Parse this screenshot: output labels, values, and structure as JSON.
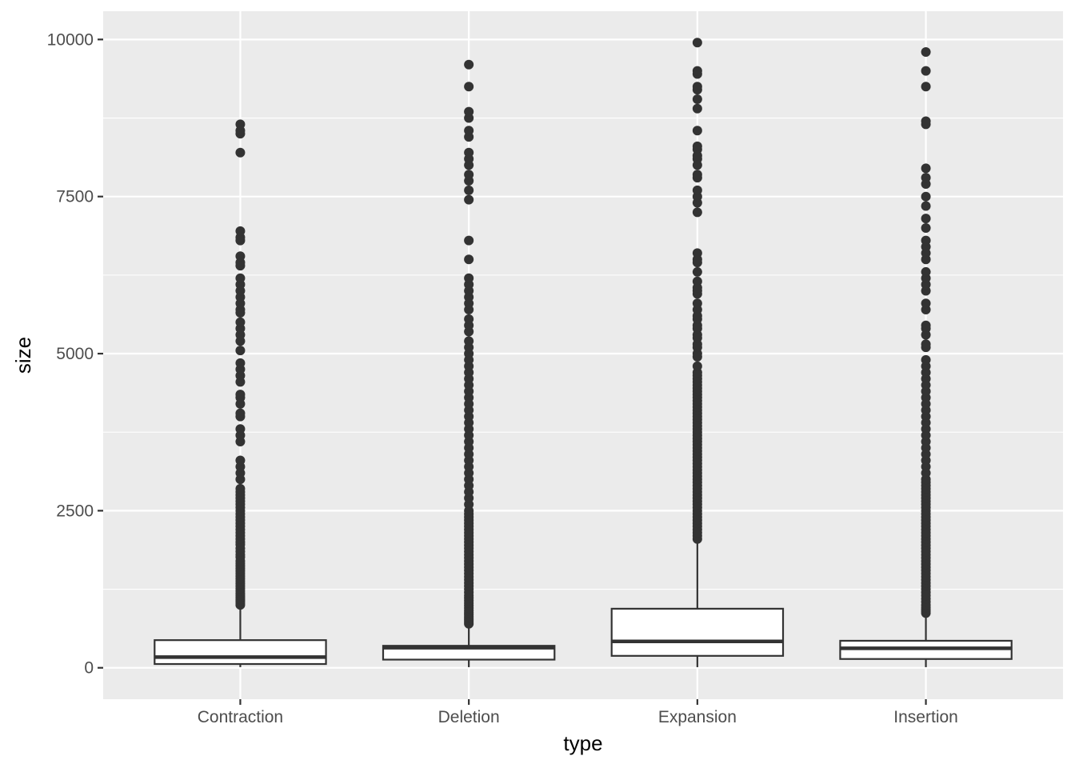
{
  "chart_data": {
    "type": "boxplot",
    "title": "",
    "xlabel": "type",
    "ylabel": "size",
    "categories": [
      "Contraction",
      "Deletion",
      "Expansion",
      "Insertion"
    ],
    "ylim": [
      -500,
      10450
    ],
    "yticks": [
      0,
      2500,
      5000,
      7500,
      10000
    ],
    "ytick_labels": [
      "0",
      "2500",
      "5000",
      "7500",
      "10000"
    ],
    "grid": true,
    "panel_background": "#ebebeb",
    "box_fill": "#ffffff",
    "box_stroke": "#333333",
    "point_color": "#333333",
    "boxes": [
      {
        "category": "Contraction",
        "whisker_low": 10,
        "q1": 60,
        "median": 170,
        "q3": 440,
        "whisker_high": 980,
        "outliers": [
          1000,
          1030,
          1060,
          1090,
          1120,
          1150,
          1180,
          1220,
          1260,
          1300,
          1340,
          1380,
          1420,
          1460,
          1500,
          1540,
          1580,
          1620,
          1660,
          1700,
          1760,
          1800,
          1850,
          1900,
          1960,
          2000,
          2050,
          2100,
          2150,
          2200,
          2250,
          2300,
          2350,
          2400,
          2450,
          2500,
          2550,
          2600,
          2650,
          2700,
          2750,
          2800,
          2850,
          3000,
          3100,
          3200,
          3300,
          3600,
          3700,
          3800,
          4000,
          4050,
          4200,
          4300,
          4350,
          4550,
          4650,
          4750,
          4850,
          5050,
          5200,
          5300,
          5400,
          5500,
          5650,
          5700,
          5800,
          5900,
          6000,
          6100,
          6200,
          6400,
          6450,
          6550,
          6800,
          6850,
          6950,
          8200,
          8500,
          8550,
          8650
        ]
      },
      {
        "category": "Deletion",
        "whisker_low": 10,
        "q1": 130,
        "median": 320,
        "q3": 350,
        "whisker_high": 680,
        "outliers": [
          700,
          730,
          760,
          790,
          820,
          850,
          880,
          910,
          950,
          990,
          1030,
          1070,
          1110,
          1150,
          1200,
          1250,
          1300,
          1350,
          1400,
          1450,
          1500,
          1550,
          1600,
          1650,
          1700,
          1750,
          1800,
          1850,
          1900,
          1950,
          2000,
          2050,
          2100,
          2150,
          2200,
          2250,
          2300,
          2350,
          2400,
          2450,
          2500,
          2600,
          2700,
          2800,
          2900,
          3000,
          3100,
          3200,
          3300,
          3400,
          3500,
          3600,
          3700,
          3800,
          3900,
          4000,
          4100,
          4200,
          4300,
          4400,
          4500,
          4600,
          4700,
          4800,
          4900,
          5000,
          5100,
          5200,
          5350,
          5450,
          5550,
          5700,
          5800,
          5900,
          6000,
          6100,
          6200,
          6500,
          6800,
          7450,
          7600,
          7750,
          7850,
          8000,
          8100,
          8200,
          8450,
          8550,
          8750,
          8850,
          9250,
          9600
        ]
      },
      {
        "category": "Expansion",
        "whisker_low": 10,
        "q1": 190,
        "median": 420,
        "q3": 940,
        "whisker_high": 2020,
        "outliers": [
          2050,
          2100,
          2150,
          2200,
          2250,
          2300,
          2350,
          2400,
          2450,
          2500,
          2550,
          2600,
          2650,
          2700,
          2750,
          2800,
          2850,
          2900,
          2950,
          3000,
          3050,
          3100,
          3150,
          3200,
          3250,
          3300,
          3350,
          3400,
          3450,
          3500,
          3550,
          3600,
          3650,
          3700,
          3750,
          3800,
          3850,
          3900,
          3950,
          4000,
          4050,
          4100,
          4150,
          4200,
          4250,
          4300,
          4350,
          4400,
          4450,
          4500,
          4550,
          4600,
          4650,
          4700,
          4800,
          4950,
          5000,
          5100,
          5150,
          5250,
          5300,
          5400,
          5450,
          5550,
          5600,
          5700,
          5800,
          5950,
          6000,
          6050,
          6150,
          6300,
          6450,
          6500,
          6600,
          7250,
          7400,
          7500,
          7600,
          7800,
          7850,
          8000,
          8100,
          8150,
          8250,
          8300,
          8550,
          8900,
          9050,
          9200,
          9250,
          9450,
          9500,
          9950
        ]
      },
      {
        "category": "Insertion",
        "whisker_low": 10,
        "q1": 140,
        "median": 310,
        "q3": 430,
        "whisker_high": 850,
        "outliers": [
          870,
          900,
          930,
          960,
          1000,
          1050,
          1100,
          1150,
          1200,
          1250,
          1300,
          1350,
          1400,
          1450,
          1500,
          1550,
          1600,
          1650,
          1700,
          1750,
          1800,
          1850,
          1900,
          1950,
          2000,
          2050,
          2100,
          2150,
          2200,
          2250,
          2300,
          2350,
          2400,
          2450,
          2500,
          2550,
          2600,
          2650,
          2700,
          2750,
          2800,
          2850,
          2900,
          2950,
          3000,
          3100,
          3200,
          3300,
          3400,
          3500,
          3600,
          3700,
          3800,
          3900,
          4000,
          4100,
          4200,
          4300,
          4400,
          4500,
          4600,
          4700,
          4800,
          4900,
          5100,
          5150,
          5300,
          5400,
          5450,
          5700,
          5800,
          6000,
          6100,
          6200,
          6300,
          6500,
          6600,
          6700,
          6800,
          7000,
          7150,
          7350,
          7500,
          7700,
          7800,
          7950,
          8650,
          8700,
          9250,
          9500,
          9800
        ]
      }
    ]
  }
}
